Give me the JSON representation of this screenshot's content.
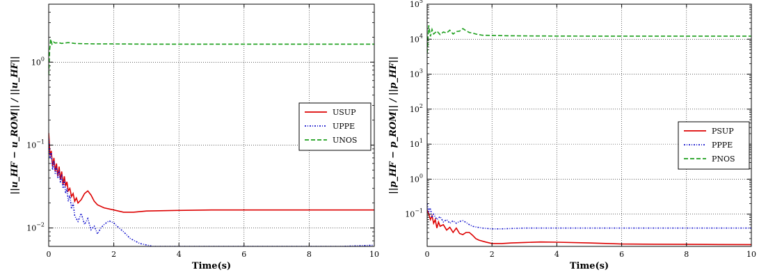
{
  "chart_data": [
    {
      "type": "line",
      "xlabel": "Time(s)",
      "ylabel": "||u_HF − u_ROM|| / ||u_HF||",
      "yscale": "log",
      "xlim": [
        0,
        10
      ],
      "ylim": [
        0.006,
        5
      ],
      "x_ticks": [
        "0",
        "2",
        "4",
        "6",
        "8",
        "10"
      ],
      "y_ticks": [
        {
          "value": 0.01,
          "label": "10",
          "exp": "−2"
        },
        {
          "value": 0.1,
          "label": "10",
          "exp": "−1"
        },
        {
          "value": 1,
          "label": "10",
          "exp": "0"
        }
      ],
      "grid": true,
      "legend_position": "center-right",
      "series": [
        {
          "name": "USUP",
          "color": "#dd0000",
          "dash": "solid",
          "x": [
            0,
            0.04,
            0.08,
            0.12,
            0.16,
            0.2,
            0.24,
            0.28,
            0.32,
            0.36,
            0.4,
            0.44,
            0.48,
            0.52,
            0.56,
            0.6,
            0.65,
            0.7,
            0.75,
            0.8,
            0.85,
            0.9,
            1.0,
            1.1,
            1.2,
            1.3,
            1.4,
            1.5,
            1.7,
            2.0,
            2.3,
            2.6,
            3.0,
            4.0,
            5.0,
            6.0,
            7.0,
            8.0,
            9.0,
            10.0
          ],
          "y": [
            0.14,
            0.075,
            0.085,
            0.055,
            0.07,
            0.048,
            0.06,
            0.042,
            0.055,
            0.038,
            0.048,
            0.033,
            0.042,
            0.032,
            0.036,
            0.028,
            0.03,
            0.024,
            0.026,
            0.021,
            0.023,
            0.02,
            0.022,
            0.026,
            0.028,
            0.025,
            0.021,
            0.019,
            0.0175,
            0.0165,
            0.0155,
            0.0155,
            0.016,
            0.0163,
            0.0165,
            0.0165,
            0.0165,
            0.0165,
            0.0165,
            0.0165
          ]
        },
        {
          "name": "UPPE",
          "color": "#1111cc",
          "dash": "dashdot",
          "x": [
            0,
            0.04,
            0.08,
            0.12,
            0.16,
            0.2,
            0.24,
            0.28,
            0.32,
            0.36,
            0.4,
            0.44,
            0.48,
            0.52,
            0.56,
            0.6,
            0.65,
            0.7,
            0.75,
            0.8,
            0.9,
            1.0,
            1.1,
            1.2,
            1.3,
            1.4,
            1.5,
            1.6,
            1.7,
            1.85,
            2.0,
            2.1,
            2.3,
            2.5,
            2.8,
            3.2,
            3.6,
            4.0,
            5.0,
            6.0,
            7.0,
            8.0,
            9.0,
            10.0
          ],
          "y": [
            0.12,
            0.07,
            0.08,
            0.05,
            0.065,
            0.045,
            0.055,
            0.04,
            0.05,
            0.035,
            0.044,
            0.03,
            0.038,
            0.026,
            0.03,
            0.021,
            0.025,
            0.017,
            0.02,
            0.014,
            0.012,
            0.015,
            0.011,
            0.013,
            0.0095,
            0.0105,
            0.0085,
            0.01,
            0.011,
            0.0122,
            0.0115,
            0.0105,
            0.009,
            0.0075,
            0.0065,
            0.006,
            0.006,
            0.006,
            0.006,
            0.006,
            0.006,
            0.006,
            0.006,
            0.0062
          ]
        },
        {
          "name": "UNOS",
          "color": "#1a9e1a",
          "dash": "dashed",
          "x": [
            0,
            0.03,
            0.06,
            0.1,
            0.15,
            0.2,
            0.3,
            0.4,
            0.5,
            0.6,
            0.7,
            0.8,
            1.0,
            1.5,
            2.0,
            3.0,
            4.0,
            5.0,
            6.0,
            7.0,
            8.0,
            9.0,
            10.0
          ],
          "y": [
            0.7,
            1.4,
            1.9,
            1.65,
            1.75,
            1.7,
            1.72,
            1.68,
            1.7,
            1.72,
            1.7,
            1.68,
            1.67,
            1.66,
            1.66,
            1.65,
            1.65,
            1.65,
            1.65,
            1.65,
            1.65,
            1.65,
            1.65
          ]
        }
      ]
    },
    {
      "type": "line",
      "xlabel": "Time(s)",
      "ylabel": "||p_HF − p_ROM|| / ||p_HF||",
      "yscale": "log",
      "xlim": [
        0,
        10
      ],
      "ylim": [
        0.012,
        100000
      ],
      "x_ticks": [
        "0",
        "2",
        "4",
        "6",
        "8",
        "10"
      ],
      "y_ticks": [
        {
          "value": 0.1,
          "label": "10",
          "exp": "−1"
        },
        {
          "value": 1,
          "label": "10",
          "exp": "0"
        },
        {
          "value": 10,
          "label": "10",
          "exp": "1"
        },
        {
          "value": 100,
          "label": "10",
          "exp": "2"
        },
        {
          "value": 1000,
          "label": "10",
          "exp": "3"
        },
        {
          "value": 10000,
          "label": "10",
          "exp": "4"
        },
        {
          "value": 100000,
          "label": "10",
          "exp": "5"
        }
      ],
      "grid": true,
      "legend_position": "center-right",
      "series": [
        {
          "name": "PSUP",
          "color": "#dd0000",
          "dash": "solid",
          "x": [
            0,
            0.05,
            0.1,
            0.15,
            0.2,
            0.25,
            0.3,
            0.35,
            0.4,
            0.5,
            0.6,
            0.7,
            0.8,
            0.9,
            1.0,
            1.1,
            1.2,
            1.3,
            1.4,
            1.5,
            1.6,
            1.8,
            2.0,
            2.3,
            2.6,
            3.0,
            3.5,
            4.0,
            5.0,
            6.0,
            7.0,
            8.0,
            9.0,
            10.0
          ],
          "y": [
            0.13,
            0.1,
            0.07,
            0.09,
            0.055,
            0.07,
            0.04,
            0.06,
            0.045,
            0.05,
            0.035,
            0.042,
            0.03,
            0.04,
            0.028,
            0.026,
            0.03,
            0.03,
            0.025,
            0.02,
            0.018,
            0.016,
            0.0145,
            0.0145,
            0.015,
            0.0155,
            0.016,
            0.0158,
            0.015,
            0.014,
            0.0138,
            0.0137,
            0.0136,
            0.0135
          ]
        },
        {
          "name": "PPPE",
          "color": "#1111cc",
          "dash": "dashdot",
          "x": [
            0,
            0.05,
            0.1,
            0.15,
            0.2,
            0.3,
            0.4,
            0.5,
            0.6,
            0.7,
            0.8,
            0.9,
            1.0,
            1.1,
            1.2,
            1.3,
            1.4,
            1.5,
            1.7,
            2.0,
            2.3,
            2.6,
            3.0,
            4.0,
            5.0,
            6.0,
            7.0,
            8.0,
            9.0,
            10.0
          ],
          "y": [
            0.2,
            0.12,
            0.15,
            0.08,
            0.1,
            0.07,
            0.085,
            0.06,
            0.07,
            0.055,
            0.065,
            0.055,
            0.062,
            0.065,
            0.058,
            0.05,
            0.045,
            0.043,
            0.04,
            0.038,
            0.038,
            0.039,
            0.04,
            0.04,
            0.04,
            0.04,
            0.04,
            0.04,
            0.04,
            0.04
          ]
        },
        {
          "name": "PNOS",
          "color": "#1a9e1a",
          "dash": "dashed",
          "x": [
            0,
            0.05,
            0.1,
            0.15,
            0.2,
            0.3,
            0.4,
            0.5,
            0.6,
            0.7,
            0.8,
            0.9,
            1.0,
            1.1,
            1.2,
            1.3,
            1.4,
            1.5,
            1.7,
            2.0,
            2.5,
            3.0,
            4.0,
            5.0,
            6.0,
            7.0,
            8.0,
            9.0,
            10.0
          ],
          "y": [
            4000,
            25000,
            12000,
            19000,
            14000,
            17000,
            13500,
            16000,
            15000,
            18000,
            14000,
            16500,
            17000,
            20000,
            17500,
            15500,
            15000,
            14000,
            13000,
            12800,
            12500,
            12400,
            12300,
            12200,
            12200,
            12200,
            12200,
            12200,
            12200
          ]
        }
      ]
    }
  ]
}
